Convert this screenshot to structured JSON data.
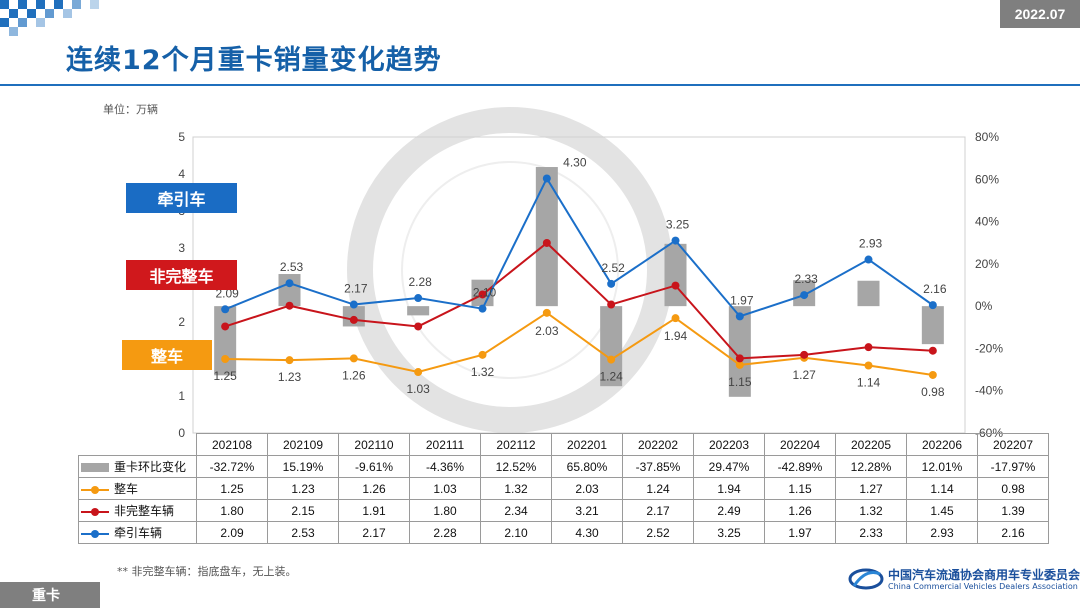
{
  "header": {
    "date": "2022.07",
    "title": "连续12个月重卡销量变化趋势",
    "unit": "单位：万辆"
  },
  "tags": {
    "tractor": "牵引车",
    "incomplete": "非完整车",
    "complete": "整车"
  },
  "footer": {
    "note": "** 非完整车辆：指底盘车，无上装。",
    "section": "重卡",
    "org_cn": "中国汽车流通协会商用车专业委员会",
    "org_en": "China Commercial Vehicles Dealers Association"
  },
  "colors": {
    "bar": "#a6a6a6",
    "complete": "#f59a11",
    "incomplete": "#c8141b",
    "tractor": "#1b6fc9",
    "title": "#1560a8"
  },
  "chart_data": {
    "type": "bar+line",
    "categories": [
      "202108",
      "202109",
      "202110",
      "202111",
      "202112",
      "202201",
      "202202",
      "202203",
      "202204",
      "202205",
      "202206",
      "202207"
    ],
    "left_axis": {
      "range": [
        0,
        5
      ],
      "ticks": [
        "0",
        "1",
        "1",
        "2",
        "2",
        "3",
        "3",
        "4",
        "5"
      ]
    },
    "right_axis": {
      "range": [
        -60,
        80
      ],
      "ticks": [
        "-60%",
        "-40%",
        "-20%",
        "0%",
        "20%",
        "40%",
        "60%",
        "80%"
      ]
    },
    "series": [
      {
        "name": "重卡环比变化",
        "kind": "bar",
        "axis": "right",
        "values": [
          -32.72,
          15.19,
          -9.61,
          -4.36,
          12.52,
          65.8,
          -37.85,
          29.47,
          -42.89,
          12.28,
          12.01,
          -17.97
        ],
        "labels": [
          "-32.72%",
          "15.19%",
          "-9.61%",
          "-4.36%",
          "12.52%",
          "65.80%",
          "-37.85%",
          "29.47%",
          "-42.89%",
          "12.28%",
          "12.01%",
          "-17.97%"
        ]
      },
      {
        "name": "整车",
        "kind": "line",
        "axis": "left",
        "values": [
          1.25,
          1.23,
          1.26,
          1.03,
          1.32,
          2.03,
          1.24,
          1.94,
          1.15,
          1.27,
          1.14,
          0.98
        ],
        "labels": [
          "1.25",
          "1.23",
          "1.26",
          "1.03",
          "1.32",
          "2.03",
          "1.24",
          "1.94",
          "1.15",
          "1.27",
          "1.14",
          "0.98"
        ]
      },
      {
        "name": "非完整车辆",
        "kind": "line",
        "axis": "left",
        "values": [
          1.8,
          2.15,
          1.91,
          1.8,
          2.34,
          3.21,
          2.17,
          2.49,
          1.26,
          1.32,
          1.45,
          1.39
        ],
        "labels": [
          "1.80",
          "2.15",
          "1.91",
          "1.80",
          "2.34",
          "3.21",
          "2.17",
          "2.49",
          "1.26",
          "1.32",
          "1.45",
          "1.39"
        ]
      },
      {
        "name": "牵引车辆",
        "kind": "line",
        "axis": "left",
        "values": [
          2.09,
          2.53,
          2.17,
          2.28,
          2.1,
          4.3,
          2.52,
          3.25,
          1.97,
          2.33,
          2.93,
          2.16
        ],
        "labels": [
          "2.09",
          "2.53",
          "2.17",
          "2.28",
          "2.10",
          "4.30",
          "2.52",
          "3.25",
          "1.97",
          "2.33",
          "2.93",
          "2.16"
        ]
      }
    ]
  }
}
